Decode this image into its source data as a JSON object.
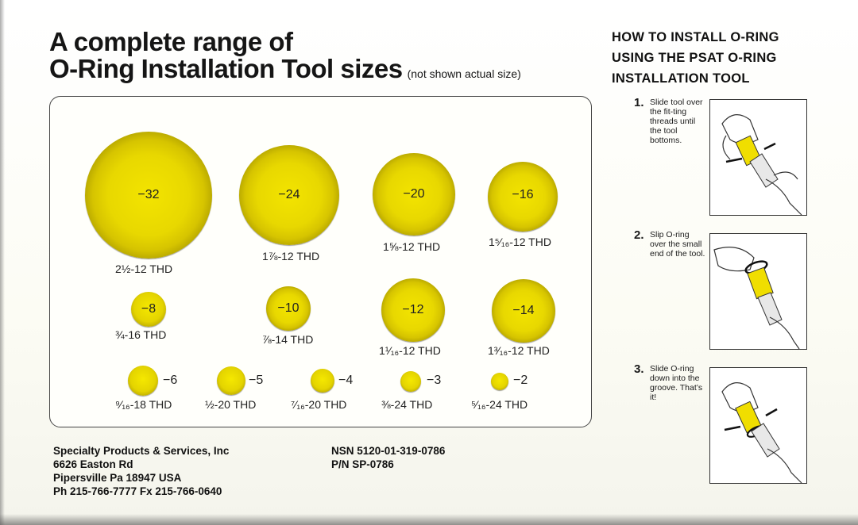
{
  "title": {
    "line1": "A complete range of",
    "line2": "O-Ring Installation Tool sizes",
    "note": "(not shown actual size)"
  },
  "tools": [
    {
      "dash": "−32",
      "thread": "2½-12 THD"
    },
    {
      "dash": "−24",
      "thread": "1⅞-12 THD"
    },
    {
      "dash": "−20",
      "thread": "1⅝-12 THD"
    },
    {
      "dash": "−16",
      "thread": "1⁵⁄₁₆-12 THD"
    },
    {
      "dash": "−8",
      "thread": "¾-16 THD"
    },
    {
      "dash": "−10",
      "thread": "⅞-14 THD"
    },
    {
      "dash": "−12",
      "thread": "1¹⁄₁₆-12 THD"
    },
    {
      "dash": "−14",
      "thread": "1³⁄₁₆-12 THD"
    },
    {
      "dash": "−6",
      "thread": "⁹⁄₁₆-18 THD"
    },
    {
      "dash": "−5",
      "thread": "½-20 THD"
    },
    {
      "dash": "−4",
      "thread": "⁷⁄₁₆-20 THD"
    },
    {
      "dash": "−3",
      "thread": "⅜-24 THD"
    },
    {
      "dash": "−2",
      "thread": "⁵⁄₁₆-24 THD"
    }
  ],
  "howto": {
    "line1": "HOW TO INSTALL O-RING",
    "line2": "USING THE PSAT O-RING",
    "line3": "INSTALLATION TOOL"
  },
  "steps": [
    {
      "num": "1.",
      "text": "Slide tool over the fit-ting threads until the tool bottoms."
    },
    {
      "num": "2.",
      "text": "Slip O-ring over the small end of the tool."
    },
    {
      "num": "3.",
      "text": "Slide O-ring down into the groove. That’s it!"
    }
  ],
  "company": {
    "name": "Specialty Products & Services, Inc",
    "street": "6626 Easton Rd",
    "city": "Pipersville Pa 18947 USA",
    "phone": "Ph 215-766-7777 Fx 215-766-0640"
  },
  "part": {
    "nsn": "NSN 5120-01-319-0786",
    "pn": "P/N SP-0786"
  },
  "colors": {
    "ring_yellow": "#e8d800",
    "ring_rim": "#8a7f00",
    "text": "#1a1a1a"
  }
}
